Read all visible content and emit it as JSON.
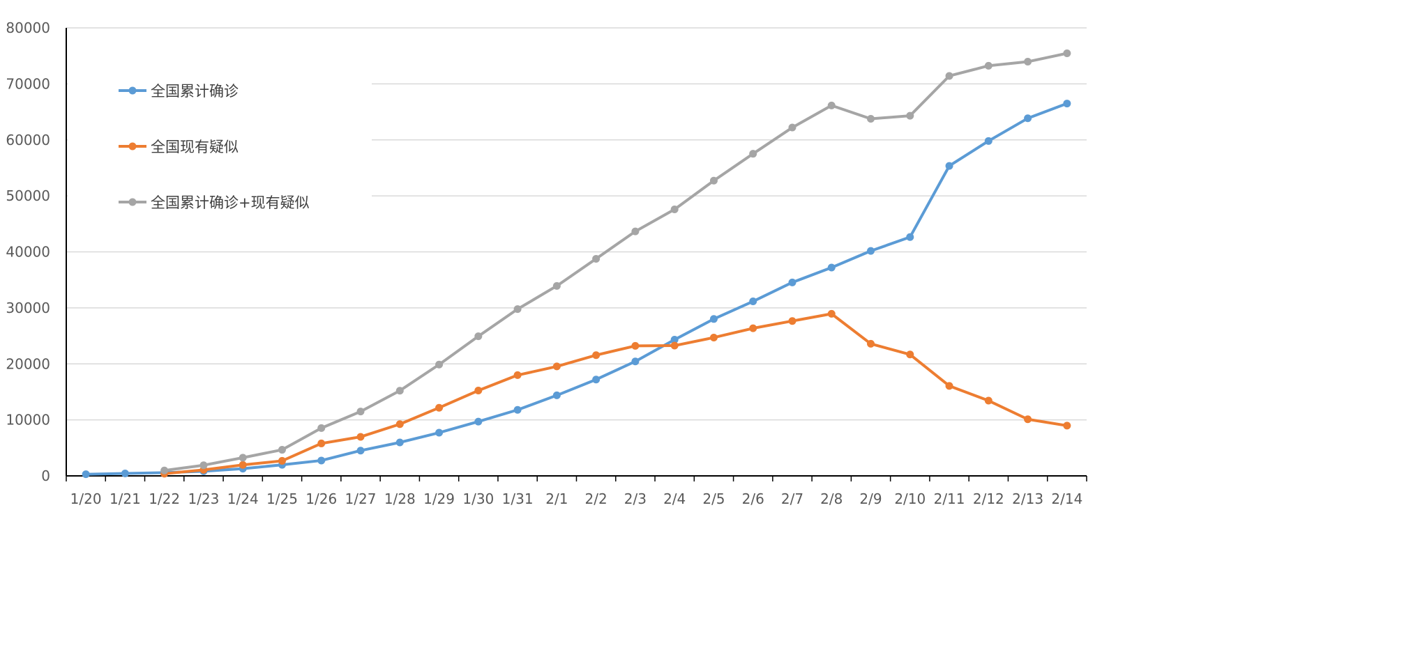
{
  "chart_data": {
    "type": "line",
    "title": "",
    "xlabel": "",
    "ylabel": "",
    "ylim": [
      0,
      80000
    ],
    "yticks": [
      0,
      10000,
      20000,
      30000,
      40000,
      50000,
      60000,
      70000,
      80000
    ],
    "grid": true,
    "legend_position": "top-left",
    "categories": [
      "1/20",
      "1/21",
      "1/22",
      "1/23",
      "1/24",
      "1/25",
      "1/26",
      "1/27",
      "1/28",
      "1/29",
      "1/30",
      "1/31",
      "2/1",
      "2/2",
      "2/3",
      "2/4",
      "2/5",
      "2/6",
      "2/7",
      "2/8",
      "2/9",
      "2/10",
      "2/11",
      "2/12",
      "2/13",
      "2/14"
    ],
    "series": [
      {
        "name": "全国累计确诊",
        "color": "#5b9bd5",
        "values": [
          291,
          440,
          571,
          830,
          1287,
          1975,
          2744,
          4515,
          5974,
          7711,
          9692,
          11791,
          14380,
          17205,
          20438,
          24324,
          28018,
          31161,
          34546,
          37198,
          40171,
          42638,
          55350,
          59804,
          63851,
          66492
        ]
      },
      {
        "name": "全国现有疑似",
        "color": "#ed7d31",
        "values": [
          null,
          null,
          393,
          1072,
          1965,
          2684,
          5794,
          6973,
          9239,
          12167,
          15238,
          17988,
          19544,
          21558,
          23214,
          23260,
          24702,
          26359,
          27657,
          28942,
          23589,
          21675,
          16067,
          13435,
          10109,
          8969
        ]
      },
      {
        "name": "全国累计确诊+现有疑似",
        "color": "#a5a5a5",
        "values": [
          null,
          null,
          964,
          1902,
          3252,
          4659,
          8538,
          11488,
          15213,
          19878,
          24930,
          29779,
          33924,
          38763,
          43652,
          47584,
          52720,
          57520,
          62203,
          66140,
          63760,
          64313,
          71417,
          73239,
          73960,
          75461
        ]
      }
    ]
  }
}
